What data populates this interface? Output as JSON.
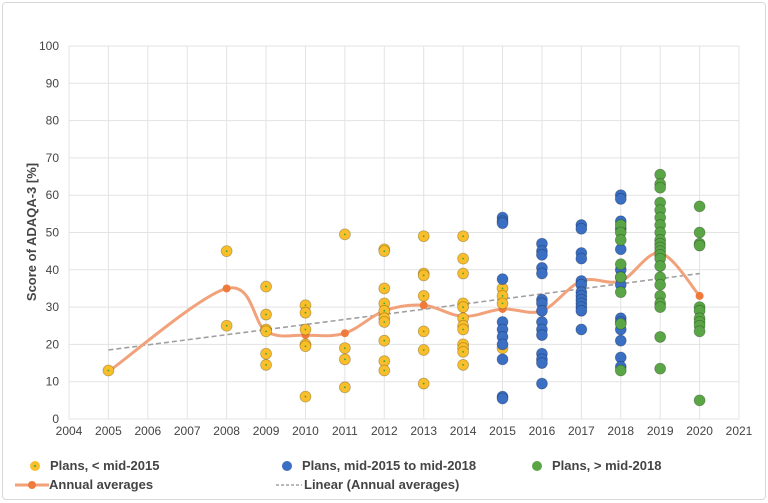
{
  "chart_data": {
    "type": "scatter",
    "title": "",
    "xlabel": "",
    "ylabel": "Score of  ADAQA-3  [%]",
    "xlim": [
      2004,
      2021
    ],
    "ylim": [
      0,
      100
    ],
    "xticks": [
      2004,
      2005,
      2006,
      2007,
      2008,
      2009,
      2010,
      2011,
      2012,
      2013,
      2014,
      2015,
      2016,
      2017,
      2018,
      2019,
      2020,
      2021
    ],
    "yticks": [
      0,
      10,
      20,
      30,
      40,
      50,
      60,
      70,
      80,
      90,
      100
    ],
    "grid": true,
    "legend_placement": "bottom",
    "colors": {
      "early": "#f9be2a",
      "mid": "#3a6fc4",
      "late": "#5aa646",
      "avg": "#f07a3c",
      "avg_line": "#f2a27a",
      "linear": "#a0a0a0"
    },
    "series": [
      {
        "name": "Plans, < mid-2015",
        "kind": "scatter",
        "color": "#f9be2a",
        "points": [
          [
            2005,
            13
          ],
          [
            2008,
            45
          ],
          [
            2008,
            25
          ],
          [
            2009,
            35.5
          ],
          [
            2009,
            28
          ],
          [
            2009,
            24
          ],
          [
            2009,
            23.5
          ],
          [
            2009,
            17.5
          ],
          [
            2009,
            14.5
          ],
          [
            2010,
            30.5
          ],
          [
            2010,
            28.5
          ],
          [
            2010,
            24
          ],
          [
            2010,
            20
          ],
          [
            2010,
            19.5
          ],
          [
            2010,
            6
          ],
          [
            2011,
            49.5
          ],
          [
            2011,
            19
          ],
          [
            2011,
            16
          ],
          [
            2011,
            8.5
          ],
          [
            2012,
            45.5
          ],
          [
            2012,
            45
          ],
          [
            2012,
            35
          ],
          [
            2012,
            31
          ],
          [
            2012,
            29
          ],
          [
            2012,
            27
          ],
          [
            2012,
            26
          ],
          [
            2012,
            21
          ],
          [
            2012,
            15.5
          ],
          [
            2012,
            13
          ],
          [
            2013,
            49
          ],
          [
            2013,
            39
          ],
          [
            2013,
            38.5
          ],
          [
            2013,
            33
          ],
          [
            2013,
            23.5
          ],
          [
            2013,
            18.5
          ],
          [
            2013,
            9.5
          ],
          [
            2014,
            49
          ],
          [
            2014,
            43
          ],
          [
            2014,
            39
          ],
          [
            2014,
            31
          ],
          [
            2014,
            30
          ],
          [
            2014,
            27
          ],
          [
            2014,
            25
          ],
          [
            2014,
            24
          ],
          [
            2014,
            20
          ],
          [
            2014,
            19
          ],
          [
            2014,
            18
          ],
          [
            2014,
            14.5
          ],
          [
            2015,
            35
          ],
          [
            2015,
            33
          ],
          [
            2015,
            31
          ],
          [
            2015,
            19
          ]
        ]
      },
      {
        "name": "Plans, mid-2015 to mid-2018",
        "kind": "scatter",
        "color": "#3a6fc4",
        "points": [
          [
            2015,
            54
          ],
          [
            2015,
            53
          ],
          [
            2015,
            52.5
          ],
          [
            2015,
            37.5
          ],
          [
            2015,
            26
          ],
          [
            2015,
            24
          ],
          [
            2015,
            22
          ],
          [
            2015,
            20
          ],
          [
            2015,
            16
          ],
          [
            2015,
            6
          ],
          [
            2015,
            5.5
          ],
          [
            2016,
            47
          ],
          [
            2016,
            45
          ],
          [
            2016,
            44
          ],
          [
            2016,
            40.5
          ],
          [
            2016,
            39
          ],
          [
            2016,
            32
          ],
          [
            2016,
            31
          ],
          [
            2016,
            29
          ],
          [
            2016,
            26
          ],
          [
            2016,
            24
          ],
          [
            2016,
            22.5
          ],
          [
            2016,
            17.5
          ],
          [
            2016,
            16
          ],
          [
            2016,
            15
          ],
          [
            2016,
            9.5
          ],
          [
            2017,
            52
          ],
          [
            2017,
            51
          ],
          [
            2017,
            44.5
          ],
          [
            2017,
            43
          ],
          [
            2017,
            37
          ],
          [
            2017,
            36
          ],
          [
            2017,
            34
          ],
          [
            2017,
            33
          ],
          [
            2017,
            32
          ],
          [
            2017,
            31
          ],
          [
            2017,
            30
          ],
          [
            2017,
            29
          ],
          [
            2017,
            24
          ],
          [
            2018,
            60
          ],
          [
            2018,
            59
          ],
          [
            2018,
            53
          ],
          [
            2018,
            51
          ],
          [
            2018,
            45.5
          ],
          [
            2018,
            40
          ],
          [
            2018,
            38
          ],
          [
            2018,
            36
          ],
          [
            2018,
            27
          ],
          [
            2018,
            26
          ],
          [
            2018,
            24
          ],
          [
            2018,
            21
          ],
          [
            2018,
            16.5
          ],
          [
            2018,
            14
          ]
        ]
      },
      {
        "name": "Plans, > mid-2018",
        "kind": "scatter",
        "color": "#5aa646",
        "points": [
          [
            2018,
            52
          ],
          [
            2018,
            50
          ],
          [
            2018,
            48
          ],
          [
            2018,
            41.5
          ],
          [
            2018,
            38
          ],
          [
            2018,
            34
          ],
          [
            2018,
            25.5
          ],
          [
            2018,
            13
          ],
          [
            2019,
            65.5
          ],
          [
            2019,
            63
          ],
          [
            2019,
            62
          ],
          [
            2019,
            58
          ],
          [
            2019,
            56
          ],
          [
            2019,
            54
          ],
          [
            2019,
            52
          ],
          [
            2019,
            50
          ],
          [
            2019,
            48
          ],
          [
            2019,
            47
          ],
          [
            2019,
            46
          ],
          [
            2019,
            45
          ],
          [
            2019,
            44
          ],
          [
            2019,
            43
          ],
          [
            2019,
            41
          ],
          [
            2019,
            38
          ],
          [
            2019,
            36
          ],
          [
            2019,
            33
          ],
          [
            2019,
            31
          ],
          [
            2019,
            30
          ],
          [
            2019,
            22
          ],
          [
            2019,
            13.5
          ],
          [
            2020,
            57
          ],
          [
            2020,
            50
          ],
          [
            2020,
            47
          ],
          [
            2020,
            46.5
          ],
          [
            2020,
            30
          ],
          [
            2020,
            29
          ],
          [
            2020,
            27
          ],
          [
            2020,
            26
          ],
          [
            2020,
            25
          ],
          [
            2020,
            23.5
          ],
          [
            2020,
            5
          ]
        ]
      },
      {
        "name": "Annual averages",
        "kind": "smooth-line",
        "color": "#f07a3c",
        "points": [
          [
            2005,
            12.7
          ],
          [
            2008,
            35
          ],
          [
            2009,
            23.5
          ],
          [
            2010,
            22.5
          ],
          [
            2011,
            23
          ],
          [
            2012,
            29
          ],
          [
            2013,
            30.5
          ],
          [
            2014,
            27.5
          ],
          [
            2015,
            29.5
          ],
          [
            2016,
            29
          ],
          [
            2017,
            37
          ],
          [
            2018,
            37
          ],
          [
            2019,
            44.5
          ],
          [
            2020,
            33
          ]
        ]
      },
      {
        "name": "Linear (Annual averages)",
        "kind": "trendline",
        "color": "#a0a0a0",
        "points": [
          [
            2005,
            18.5
          ],
          [
            2020,
            39
          ]
        ]
      }
    ]
  }
}
